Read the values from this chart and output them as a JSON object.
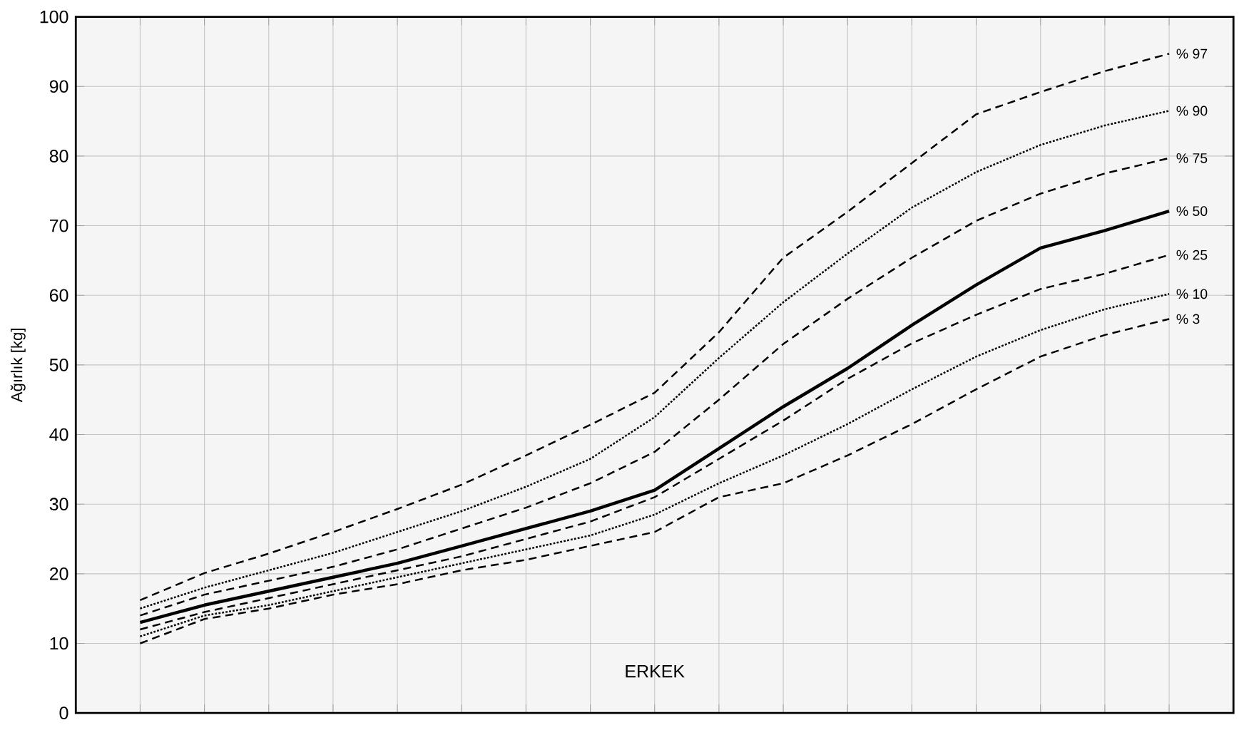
{
  "chart_data": {
    "type": "line",
    "ylabel": "Ağırlık [kg]",
    "annotations": [
      "ERKEK"
    ],
    "categories": [
      null,
      null,
      null,
      null,
      null,
      null,
      null,
      null,
      null,
      null,
      null,
      null,
      null,
      null,
      null,
      null,
      null,
      null,
      null
    ],
    "ylim": [
      0,
      100
    ],
    "yticks": [
      0,
      10,
      20,
      30,
      40,
      50,
      60,
      70,
      80,
      90,
      100
    ],
    "grid": true,
    "marker": "none",
    "series": [
      {
        "name": "% 97",
        "color": "#000000",
        "line_style": "dashed",
        "values": [
          null,
          16.2,
          20.1,
          22.9,
          26,
          29.3,
          32.8,
          37,
          41.4,
          46,
          54.7,
          65.4,
          72,
          79,
          86,
          89.2,
          92.2,
          94.7,
          null
        ]
      },
      {
        "name": "% 90",
        "color": "#000000",
        "line_style": "dotted",
        "values": [
          null,
          15,
          18,
          20.5,
          23,
          26,
          29,
          32.5,
          36.5,
          42.5,
          51,
          59,
          66,
          72.6,
          77.7,
          81.6,
          84.4,
          86.5,
          null
        ]
      },
      {
        "name": "% 75",
        "color": "#000000",
        "line_style": "dashed",
        "values": [
          null,
          14,
          17,
          19,
          21,
          23.5,
          26.5,
          29.5,
          33,
          37.5,
          45,
          53,
          59.5,
          65.4,
          70.7,
          74.6,
          77.5,
          79.7,
          null
        ]
      },
      {
        "name": "% 50",
        "color": "#000000",
        "line_style": "solid",
        "values": [
          null,
          13,
          15.5,
          17.5,
          19.5,
          21.5,
          24,
          26.5,
          29,
          32,
          38,
          44,
          49.5,
          55.7,
          61.5,
          66.8,
          69.3,
          72.1,
          null
        ]
      },
      {
        "name": "% 25",
        "color": "#000000",
        "line_style": "dashed",
        "values": [
          null,
          12,
          14.5,
          16.5,
          18.5,
          20.5,
          22.5,
          25,
          27.5,
          31,
          36.5,
          42,
          48,
          53.1,
          57.2,
          60.9,
          63.1,
          65.8,
          null
        ]
      },
      {
        "name": "% 10",
        "color": "#000000",
        "line_style": "dotted",
        "values": [
          null,
          11,
          14,
          15.5,
          17.5,
          19.5,
          21.5,
          23.5,
          25.5,
          28.5,
          33,
          37,
          41.5,
          46.5,
          51.2,
          55,
          58,
          60.2,
          null
        ]
      },
      {
        "name": "% 3",
        "color": "#000000",
        "line_style": "dashed",
        "values": [
          null,
          10,
          13.5,
          15,
          17,
          18.5,
          20.5,
          22,
          24,
          26,
          31,
          33,
          37,
          41.5,
          46.5,
          51.2,
          54.3,
          56.6,
          null
        ]
      }
    ]
  }
}
